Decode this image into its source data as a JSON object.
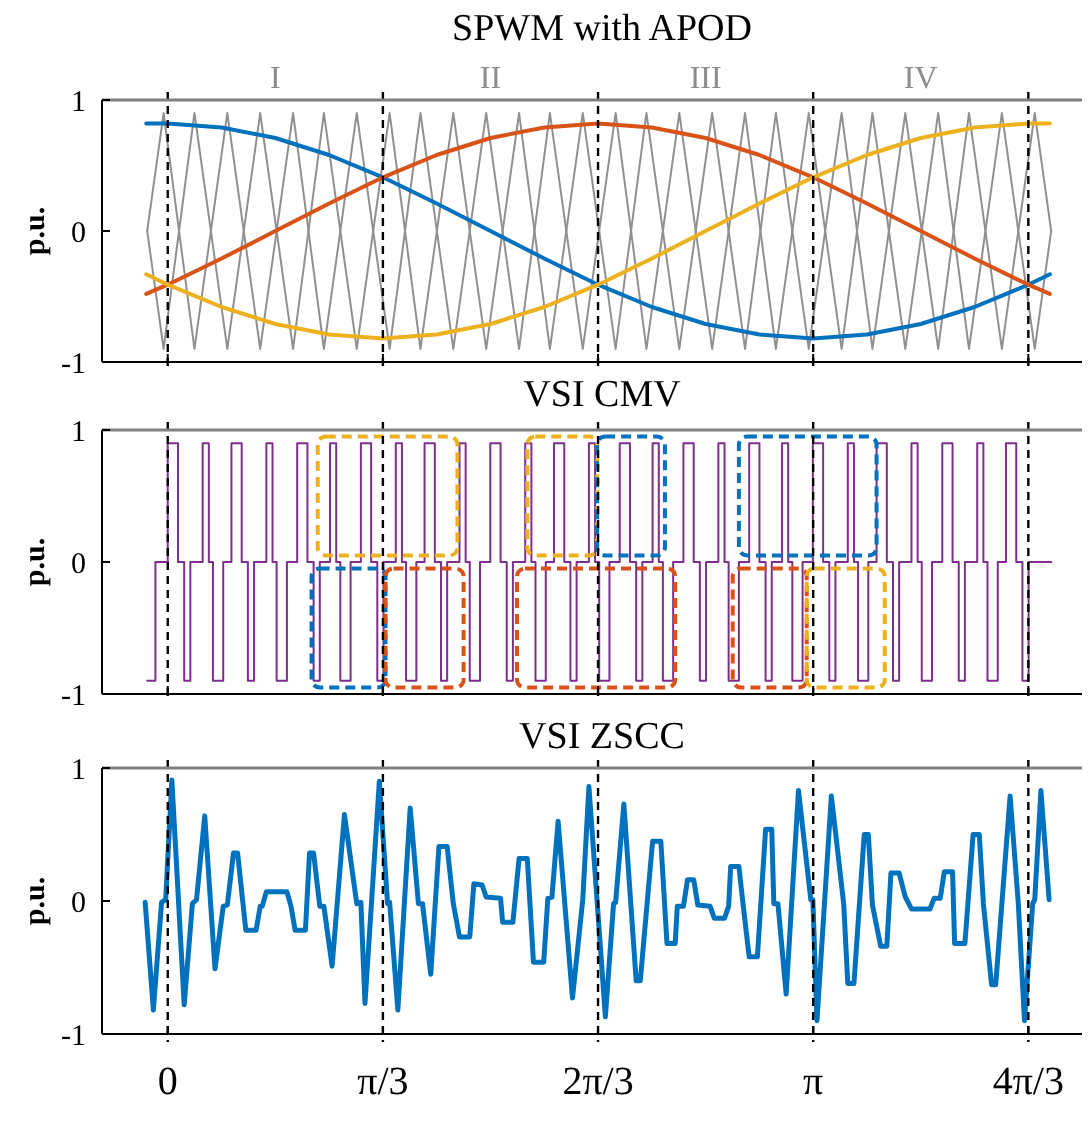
{
  "chart_data": [
    {
      "type": "line",
      "title": "SPWM with APOD",
      "ylabel": "p.u.",
      "xlim": [
        -0.32,
        4.45
      ],
      "ylim": [
        -1,
        1
      ],
      "yticks": [
        -1,
        0,
        1
      ],
      "xticks": [
        {
          "value": 0,
          "label": null
        },
        {
          "value": 1.0472,
          "label": null
        },
        {
          "value": 2.0944,
          "label": null
        },
        {
          "value": 3.1416,
          "label": null
        },
        {
          "value": 4.1888,
          "label": null
        }
      ],
      "tick_labels": "y",
      "x": [
        -0.1047,
        0,
        0.2618,
        0.5236,
        0.7854,
        1.0472,
        1.309,
        1.5708,
        1.8326,
        2.0944,
        2.3562,
        2.618,
        2.8798,
        3.1416,
        3.4034,
        3.6652,
        3.927,
        4.1888,
        4.2935
      ],
      "series": [
        {
          "color": "#909090",
          "x": [
            -0.1,
            -0.02,
            0.13,
            0.29,
            0.45,
            0.61,
            0.76,
            0.92,
            1.08,
            1.23,
            1.39,
            1.55,
            1.71,
            1.86,
            2.02,
            2.18,
            2.33,
            2.49,
            2.65,
            2.81,
            2.96,
            3.12,
            3.28,
            3.43,
            3.59,
            3.75,
            3.9,
            4.06,
            4.22,
            4.3
          ],
          "values": [
            0,
            0.9,
            -0.9,
            0.9,
            -0.9,
            0.9,
            -0.9,
            0.9,
            -0.9,
            0.9,
            -0.9,
            0.9,
            -0.9,
            0.9,
            -0.9,
            0.9,
            -0.9,
            0.9,
            -0.9,
            0.9,
            -0.9,
            0.9,
            -0.9,
            0.9,
            -0.9,
            0.9,
            -0.9,
            0.9,
            -0.9,
            0
          ]
        },
        {
          "color": "#909090",
          "x": [
            -0.1,
            -0.02,
            0.13,
            0.29,
            0.45,
            0.61,
            0.76,
            0.92,
            1.08,
            1.23,
            1.39,
            1.55,
            1.71,
            1.86,
            2.02,
            2.18,
            2.33,
            2.49,
            2.65,
            2.81,
            2.96,
            3.12,
            3.28,
            3.43,
            3.59,
            3.75,
            3.9,
            4.06,
            4.22,
            4.3
          ],
          "values": [
            0,
            -0.9,
            0.9,
            -0.9,
            0.9,
            -0.9,
            0.9,
            -0.9,
            0.9,
            -0.9,
            0.9,
            -0.9,
            0.9,
            -0.9,
            0.9,
            -0.9,
            0.9,
            -0.9,
            0.9,
            -0.9,
            0.9,
            -0.9,
            0.9,
            -0.9,
            0.9,
            -0.9,
            0.9,
            -0.9,
            0.9,
            0
          ]
        },
        {
          "color": "#0072bd",
          "values": [
            0.82,
            0.82,
            0.79,
            0.71,
            0.58,
            0.41,
            0.21,
            0,
            -0.21,
            -0.41,
            -0.58,
            -0.71,
            -0.79,
            -0.82,
            -0.79,
            -0.71,
            -0.58,
            -0.41,
            -0.33
          ]
        },
        {
          "color": "#d95319",
          "values": [
            -0.48,
            -0.41,
            -0.21,
            0,
            0.21,
            0.41,
            0.58,
            0.71,
            0.79,
            0.82,
            0.79,
            0.71,
            0.58,
            0.41,
            0.21,
            0,
            -0.21,
            -0.41,
            -0.48
          ]
        },
        {
          "color": "#edb120",
          "values": [
            -0.33,
            -0.41,
            -0.58,
            -0.71,
            -0.79,
            -0.82,
            -0.79,
            -0.71,
            -0.58,
            -0.41,
            -0.21,
            0,
            0.21,
            0.41,
            0.58,
            0.71,
            0.79,
            0.82,
            0.82
          ]
        }
      ],
      "annotations": [
        "I",
        "II",
        "III",
        "IV"
      ],
      "ref_lines": [
        {
          "axis": "x",
          "value": 0,
          "color": "#000000",
          "line_style": "dashed"
        },
        {
          "axis": "x",
          "value": 1.0472,
          "color": "#000000",
          "line_style": "dashed"
        },
        {
          "axis": "x",
          "value": 2.0944,
          "color": "#000000",
          "line_style": "dashed"
        },
        {
          "axis": "x",
          "value": 3.1416,
          "color": "#000000",
          "line_style": "dashed"
        },
        {
          "axis": "x",
          "value": 4.1888,
          "color": "#000000",
          "line_style": "dashed"
        }
      ]
    },
    {
      "type": "step",
      "title": "VSI CMV",
      "ylabel": "p.u.",
      "xlim": [
        -0.32,
        4.45
      ],
      "ylim": [
        -1,
        1
      ],
      "yticks": [
        -1,
        0,
        1
      ],
      "xticks": [
        {
          "value": 0,
          "label": null
        },
        {
          "value": 1.0472,
          "label": null
        },
        {
          "value": 2.0944,
          "label": null
        },
        {
          "value": 3.1416,
          "label": null
        },
        {
          "value": 4.1888,
          "label": null
        }
      ],
      "tick_labels": "y",
      "x": [
        -0.1,
        -0.06,
        0.0,
        0.05,
        0.08,
        0.11,
        0.17,
        0.2,
        0.22,
        0.27,
        0.31,
        0.36,
        0.39,
        0.42,
        0.48,
        0.51,
        0.53,
        0.58,
        0.63,
        0.68,
        0.71,
        0.74,
        0.79,
        0.82,
        0.84,
        0.89,
        0.94,
        0.99,
        1.02,
        1.05,
        1.11,
        1.14,
        1.16,
        1.21,
        1.25,
        1.3,
        1.33,
        1.36,
        1.42,
        1.45,
        1.47,
        1.52,
        1.57,
        1.62,
        1.65,
        1.68,
        1.74,
        1.77,
        1.79,
        1.84,
        1.88,
        1.93,
        1.96,
        1.99,
        2.05,
        2.08,
        2.1,
        2.15,
        2.2,
        2.25,
        2.28,
        2.31,
        2.36,
        2.39,
        2.41,
        2.46,
        2.51,
        2.56,
        2.59,
        2.62,
        2.68,
        2.71,
        2.73,
        2.78,
        2.83,
        2.88,
        2.91,
        2.94,
        2.99,
        3.02,
        3.04,
        3.09,
        3.14,
        3.19,
        3.22,
        3.25,
        3.31,
        3.34,
        3.36,
        3.41,
        3.45,
        3.5,
        3.53,
        3.56,
        3.62,
        3.65,
        3.67,
        3.72,
        3.77,
        3.82,
        3.85,
        3.88,
        3.94,
        3.97,
        3.99,
        4.04,
        4.08,
        4.13,
        4.16,
        4.19,
        4.3
      ],
      "series": [
        {
          "color": "#7e2f8e",
          "values": [
            -0.9,
            0,
            0.9,
            0,
            -0.9,
            0,
            0.9,
            0,
            -0.9,
            0,
            0.9,
            0,
            -0.9,
            0,
            0.9,
            0,
            -0.9,
            0,
            0.9,
            0,
            -0.9,
            0,
            0.9,
            0,
            -0.9,
            0,
            0.9,
            0,
            -0.9,
            0,
            0.9,
            0,
            -0.9,
            0,
            0.9,
            0,
            -0.9,
            0,
            0.9,
            0,
            -0.9,
            0,
            0.9,
            0,
            -0.9,
            0,
            0.9,
            0,
            -0.9,
            0,
            0.9,
            0,
            -0.9,
            0,
            0.9,
            0,
            -0.9,
            0,
            0.9,
            0,
            -0.9,
            0,
            0.9,
            0,
            -0.9,
            0,
            0.9,
            0,
            -0.9,
            0,
            0.9,
            0,
            -0.9,
            0,
            0.9,
            0,
            -0.9,
            0,
            0.9,
            0,
            -0.9,
            0,
            0.9,
            0,
            -0.9,
            0,
            0.9,
            0,
            -0.9,
            0,
            0.9,
            0,
            -0.9,
            0,
            0.9,
            0,
            -0.9,
            0,
            0.9,
            0,
            -0.9,
            0,
            0.9,
            0,
            -0.9,
            0,
            0.9,
            0,
            -0.9,
            0,
            0
          ]
        }
      ],
      "ref_lines": [
        {
          "axis": "x",
          "value": 0,
          "color": "#000000",
          "line_style": "dashed"
        },
        {
          "axis": "x",
          "value": 1.0472,
          "color": "#000000",
          "line_style": "dashed"
        },
        {
          "axis": "x",
          "value": 2.0944,
          "color": "#000000",
          "line_style": "dashed"
        },
        {
          "axis": "x",
          "value": 3.1416,
          "color": "#000000",
          "line_style": "dashed"
        },
        {
          "axis": "x",
          "value": 4.1888,
          "color": "#000000",
          "line_style": "dashed"
        }
      ]
    },
    {
      "type": "line",
      "title": "VSI ZSCC",
      "ylabel": "p.u.",
      "xlim": [
        -0.32,
        4.45
      ],
      "ylim": [
        -1,
        1
      ],
      "yticks": [
        -1,
        0,
        1
      ],
      "xticks": [
        {
          "value": 0,
          "label": "0"
        },
        {
          "value": 1.0472,
          "label": "π/3"
        },
        {
          "value": 2.0944,
          "label": "2π/3"
        },
        {
          "value": 3.1416,
          "label": "π"
        },
        {
          "value": 4.1888,
          "label": "4π/3"
        }
      ],
      "x": [
        -0.11,
        -0.07,
        -0.03,
        -0.01,
        0.02,
        0.08,
        0.12,
        0.14,
        0.18,
        0.23,
        0.27,
        0.29,
        0.32,
        0.34,
        0.38,
        0.43,
        0.45,
        0.46,
        0.48,
        0.58,
        0.6,
        0.62,
        0.67,
        0.69,
        0.71,
        0.74,
        0.76,
        0.8,
        0.86,
        0.92,
        0.94,
        0.96,
        1.03,
        1.07,
        1.08,
        1.12,
        1.18,
        1.22,
        1.24,
        1.28,
        1.32,
        1.36,
        1.39,
        1.42,
        1.47,
        1.49,
        1.53,
        1.55,
        1.62,
        1.63,
        1.68,
        1.71,
        1.75,
        1.78,
        1.83,
        1.85,
        1.87,
        1.9,
        1.97,
        2.02,
        2.05,
        2.13,
        2.17,
        2.18,
        2.22,
        2.28,
        2.3,
        2.36,
        2.4,
        2.43,
        2.47,
        2.48,
        2.51,
        2.53,
        2.56,
        2.58,
        2.64,
        2.66,
        2.71,
        2.73,
        2.74,
        2.78,
        2.8,
        2.83,
        2.87,
        2.91,
        2.94,
        2.95,
        2.97,
        3.01,
        3.07,
        3.13,
        3.14,
        3.16,
        3.23,
        3.29,
        3.31,
        3.34,
        3.39,
        3.41,
        3.43,
        3.47,
        3.5,
        3.52,
        3.56,
        3.59,
        3.62,
        3.71,
        3.73,
        3.76,
        3.78,
        3.82,
        3.83,
        3.88,
        3.92,
        3.95,
        3.97,
        4.01,
        4.03,
        4.1,
        4.14,
        4.17,
        4.21,
        4.22,
        4.25,
        4.29
      ],
      "series": [
        {
          "color": "#0072bd",
          "values": [
            -0.01,
            -0.82,
            -0.01,
            0.01,
            0.91,
            -0.78,
            -0.02,
            0.01,
            0.64,
            -0.51,
            -0.04,
            -0.03,
            0.36,
            0.36,
            -0.22,
            -0.22,
            -0.04,
            -0.04,
            0.07,
            0.07,
            -0.04,
            -0.22,
            -0.22,
            0.36,
            0.36,
            -0.04,
            -0.04,
            -0.49,
            0.65,
            -0.02,
            -0.01,
            -0.77,
            0.9,
            -0.02,
            -0.01,
            -0.82,
            0.7,
            -0.02,
            -0.02,
            -0.55,
            0.41,
            0.41,
            -0.02,
            -0.27,
            -0.27,
            0.13,
            0.12,
            0.03,
            0.02,
            -0.16,
            -0.16,
            0.32,
            0.32,
            -0.46,
            -0.46,
            0.02,
            0.03,
            0.6,
            -0.73,
            0.01,
            0.86,
            -0.87,
            -0.02,
            -0.01,
            0.73,
            -0.6,
            -0.6,
            0.45,
            0.45,
            -0.32,
            -0.32,
            -0.04,
            -0.04,
            0.16,
            0.16,
            -0.03,
            -0.04,
            -0.13,
            -0.13,
            -0.04,
            0.26,
            0.26,
            -0.02,
            -0.42,
            -0.42,
            0.54,
            0.54,
            -0.02,
            -0.02,
            -0.7,
            0.83,
            0.01,
            0.01,
            -0.9,
            0.79,
            -0.02,
            -0.62,
            -0.62,
            0.5,
            0.5,
            -0.03,
            -0.34,
            -0.34,
            0.21,
            0.21,
            0.03,
            -0.06,
            -0.06,
            0.02,
            0.02,
            0.22,
            0.22,
            -0.32,
            -0.32,
            0.5,
            0.5,
            -0.02,
            -0.63,
            -0.63,
            0.79,
            -0.02,
            -0.9,
            -0.02,
            0.01,
            0.83,
            0.01
          ]
        }
      ],
      "ref_lines": [
        {
          "axis": "x",
          "value": 0,
          "color": "#000000",
          "line_style": "dashed"
        },
        {
          "axis": "x",
          "value": 1.0472,
          "color": "#000000",
          "line_style": "dashed"
        },
        {
          "axis": "x",
          "value": 2.0944,
          "color": "#000000",
          "line_style": "dashed"
        },
        {
          "axis": "x",
          "value": 3.1416,
          "color": "#000000",
          "line_style": "dashed"
        },
        {
          "axis": "x",
          "value": 4.1888,
          "color": "#000000",
          "line_style": "dashed"
        }
      ]
    }
  ]
}
